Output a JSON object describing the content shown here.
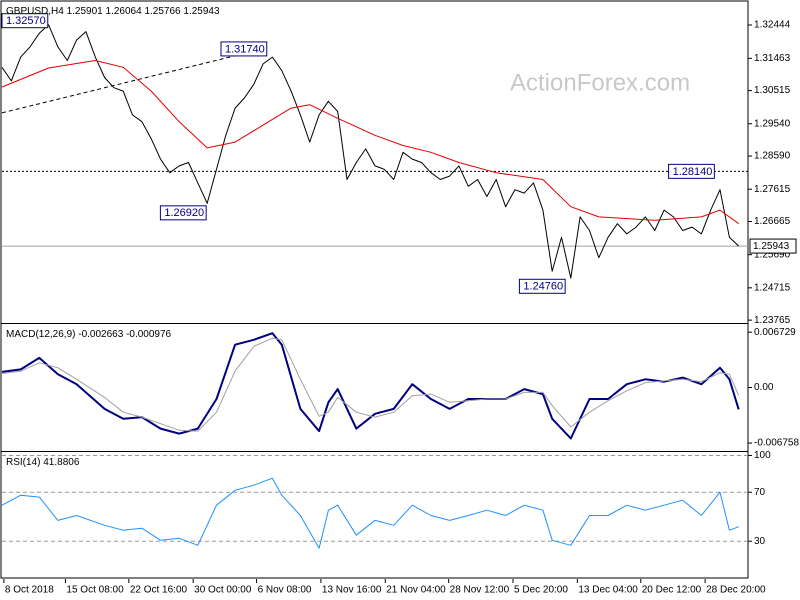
{
  "chart_data": [
    {
      "type": "line",
      "title": "GBPUSD,H4",
      "watermark": "ActionForex.com",
      "last_bar": {
        "open": 1.25901,
        "high": 1.26064,
        "low": 1.25766
      },
      "xlim": [
        0,
        80
      ],
      "ylim": [
        1.2371,
        1.3312
      ],
      "yticks": [
        1.32444,
        1.31463,
        1.30515,
        {
          "value": 1.2954,
          "label": "1.29540"
        },
        {
          "value": 1.2859,
          "label": "1.28590"
        },
        1.27615,
        1.26665,
        {
          "value": 1.2569,
          "label": "1.25690"
        },
        1.24715,
        1.23765
      ],
      "current_price_line": true,
      "series": [
        {
          "color": "#000000",
          "values": [
            1.312,
            1.308,
            1.315,
            1.318,
            1.322,
            1.3245,
            1.318,
            1.314,
            1.32,
            1.3225,
            1.315,
            1.309,
            1.306,
            1.305,
            1.298,
            1.296,
            1.291,
            1.285,
            1.281,
            1.283,
            1.284,
            1.278,
            1.272,
            1.282,
            1.292,
            1.3,
            1.303,
            1.307,
            1.313,
            1.315,
            1.311,
            1.305,
            1.298,
            1.29,
            1.298,
            1.302,
            1.299,
            1.279,
            1.284,
            1.288,
            1.283,
            1.282,
            1.279,
            1.287,
            1.285,
            1.284,
            1.281,
            1.279,
            1.28,
            1.283,
            1.277,
            1.279,
            1.274,
            1.279,
            1.271,
            1.276,
            1.275,
            1.278,
            1.27,
            1.252,
            1.262,
            1.25,
            1.268,
            1.264,
            1.256,
            1.262,
            1.266,
            1.263,
            1.265,
            1.268,
            1.264,
            1.27,
            1.268,
            1.264,
            1.265,
            1.263,
            1.27,
            1.276,
            1.262,
            1.25943
          ]
        },
        {
          "color": "#e00000",
          "x": [
            0,
            5,
            10,
            13,
            16,
            19,
            22,
            25,
            28,
            31,
            33,
            36,
            40,
            43,
            46,
            49,
            53,
            58,
            61,
            64,
            70,
            75,
            77,
            79
          ],
          "values": [
            1.3062,
            1.3118,
            1.314,
            1.312,
            1.305,
            1.296,
            1.2883,
            1.29,
            1.295,
            1.3,
            1.301,
            1.297,
            1.292,
            1.289,
            1.287,
            1.284,
            1.281,
            1.279,
            1.271,
            1.268,
            1.267,
            1.268,
            1.27,
            1.266
          ]
        }
      ],
      "trendline": {
        "x": [
          0,
          28
        ],
        "values": [
          1.2986,
          1.3174
        ],
        "style": "dashed"
      },
      "annotations": [
        {
          "x": 5,
          "value": 1.3257,
          "label": "1.32570"
        },
        {
          "x": 28.5,
          "value": 1.3174,
          "label": "1.31740"
        },
        {
          "x": 22,
          "value": 1.2692,
          "label": "1.26920"
        },
        {
          "x": 60.5,
          "value": 1.2476,
          "label": "1.24760"
        },
        {
          "x": 76.5,
          "value": 1.2814,
          "label": "1.28140",
          "hline": "dotted"
        }
      ]
    },
    {
      "type": "line",
      "title": "MACD(12,26,9)",
      "xlim": [
        0,
        80
      ],
      "ylim": [
        -0.0076,
        0.0076
      ],
      "yticks": [
        0.006729,
        {
          "value": 0,
          "label": "0.00"
        },
        -0.006758
      ],
      "series": [
        {
          "color": "#000080",
          "width": 2,
          "x": [
            0,
            2,
            4,
            6,
            8,
            11,
            13,
            15,
            17,
            19,
            21,
            23,
            25,
            27,
            29,
            30,
            32,
            34,
            35,
            36,
            38,
            40,
            42,
            44,
            46,
            48,
            50,
            52,
            54,
            56,
            58,
            59,
            61,
            63,
            65,
            67,
            69,
            71,
            73,
            75,
            77,
            78,
            79
          ],
          "values": [
            0.0019,
            0.0022,
            0.0036,
            0.0016,
            0.0004,
            -0.0026,
            -0.0038,
            -0.0036,
            -0.005,
            -0.0056,
            -0.005,
            -0.0014,
            0.0052,
            0.0058,
            0.0066,
            0.0052,
            -0.0026,
            -0.0053,
            -0.0018,
            -0.0002,
            -0.005,
            -0.0032,
            -0.0026,
            0.0004,
            -0.0014,
            -0.0026,
            -0.0014,
            -0.0014,
            -0.0014,
            -0.0002,
            -0.0008,
            -0.0038,
            -0.0062,
            -0.0014,
            -0.0014,
            0.0004,
            0.001,
            0.0007,
            0.0012,
            0.0004,
            0.0024,
            0.001,
            -0.002663
          ]
        },
        {
          "color": "#a0a0a0",
          "width": 1,
          "x": [
            0,
            2,
            4,
            6,
            8,
            11,
            13,
            15,
            17,
            19,
            21,
            23,
            25,
            27,
            29,
            30,
            32,
            34,
            35,
            36,
            38,
            40,
            42,
            44,
            46,
            48,
            50,
            52,
            54,
            56,
            58,
            59,
            61,
            63,
            65,
            67,
            69,
            71,
            73,
            75,
            77,
            78,
            79
          ],
          "values": [
            0.0017,
            0.002,
            0.003,
            0.0024,
            0.001,
            -0.0012,
            -0.003,
            -0.0036,
            -0.0044,
            -0.0052,
            -0.0053,
            -0.003,
            0.002,
            0.005,
            0.006,
            0.0058,
            0.001,
            -0.0035,
            -0.003,
            -0.0012,
            -0.003,
            -0.0036,
            -0.003,
            -0.001,
            -0.0008,
            -0.0018,
            -0.0016,
            -0.0014,
            -0.0014,
            -0.0006,
            -0.0006,
            -0.0022,
            -0.0048,
            -0.003,
            -0.0016,
            -0.0004,
            0.0006,
            0.0008,
            0.001,
            0.0007,
            0.0018,
            0.0016,
            -0.000976
          ]
        }
      ]
    },
    {
      "type": "line",
      "title": "RSI(14)",
      "xlim": [
        0,
        80
      ],
      "ylim": [
        0,
        102
      ],
      "yticks": [
        100,
        70,
        30
      ],
      "grid": "dashed",
      "xticks": [
        {
          "value": 0.2,
          "label": "8 Oct 2018"
        },
        {
          "value": 6.8,
          "label": "15 Oct 08:00"
        },
        {
          "value": 13.6,
          "label": "22 Oct 16:00"
        },
        {
          "value": 20.5,
          "label": "30 Oct 00:00"
        },
        {
          "value": 27.3,
          "label": "6 Nov 08:00"
        },
        {
          "value": 34.2,
          "label": "13 Nov 16:00"
        },
        {
          "value": 41.1,
          "label": "21 Nov 04:00"
        },
        {
          "value": 47.9,
          "label": "28 Nov 12:00"
        },
        {
          "value": 54.8,
          "label": "5 Dec 20:00"
        },
        {
          "value": 61.7,
          "label": "13 Dec 04:00"
        },
        {
          "value": 68.5,
          "label": "20 Dec 12:00"
        },
        {
          "value": 75.4,
          "label": "28 Dec 20:00"
        }
      ],
      "series": [
        {
          "color": "#1e90ff",
          "width": 1,
          "x": [
            0,
            2,
            4,
            6,
            8,
            11,
            13,
            15,
            17,
            19,
            21,
            23,
            25,
            27,
            29,
            30,
            32,
            34,
            35,
            36,
            38,
            40,
            42,
            44,
            46,
            48,
            50,
            52,
            54,
            56,
            58,
            59,
            61,
            63,
            65,
            67,
            69,
            71,
            73,
            75,
            77,
            78,
            79
          ],
          "values": [
            59.4,
            67.6,
            66,
            47,
            51,
            43,
            39,
            40.6,
            30.8,
            32.4,
            26.7,
            59.4,
            71.6,
            75.7,
            81.4,
            67.6,
            51,
            24.3,
            55.3,
            59.4,
            34.9,
            47.1,
            43,
            59.4,
            51,
            47,
            51,
            55.3,
            51,
            59.4,
            55.3,
            30.8,
            26.7,
            51,
            51,
            59.4,
            55.3,
            59.4,
            63.5,
            51,
            70,
            39,
            41.8806
          ]
        }
      ]
    }
  ]
}
